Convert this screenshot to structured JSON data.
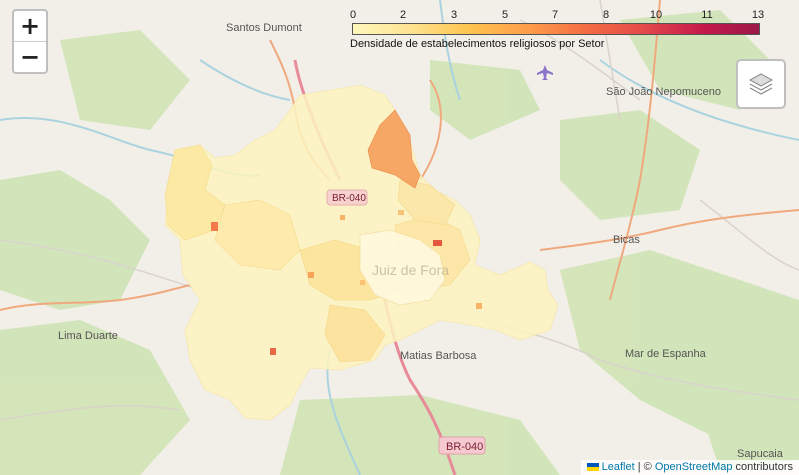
{
  "zoom": {
    "in_label": "+",
    "out_label": "−"
  },
  "legend": {
    "ticks": [
      "0",
      "2",
      "3",
      "5",
      "7",
      "8",
      "10",
      "11",
      "13"
    ],
    "caption": "Densidade de estabelecimentos religiosos por Setor",
    "colors": [
      "#fff7bc",
      "#fee391",
      "#fec44f",
      "#fe9e4a",
      "#f46d43",
      "#e34a4a",
      "#c51b4b",
      "#9b1747"
    ]
  },
  "places": {
    "santos_dumont": "Santos Dumont",
    "sao_joao": "São João Nepomuceno",
    "bicas": "Bicas",
    "lima_duarte": "Lima Duarte",
    "matias_barbosa": "Matias Barbosa",
    "mar_de_espanha": "Mar de Espanha",
    "sapucaia": "Sapucaia",
    "juiz_de_fora": "Juiz de Fora"
  },
  "road_shields": {
    "br040_north": "BR-040",
    "br040_south": "BR-040"
  },
  "attribution": {
    "leaflet": "Leaflet",
    "separator": " | © ",
    "osm": "OpenStreetMap",
    "suffix": " contributors"
  },
  "icons": {
    "zoom_in": "plus-icon",
    "zoom_out": "minus-icon",
    "layers": "layers-icon",
    "airport": "airplane-icon"
  }
}
